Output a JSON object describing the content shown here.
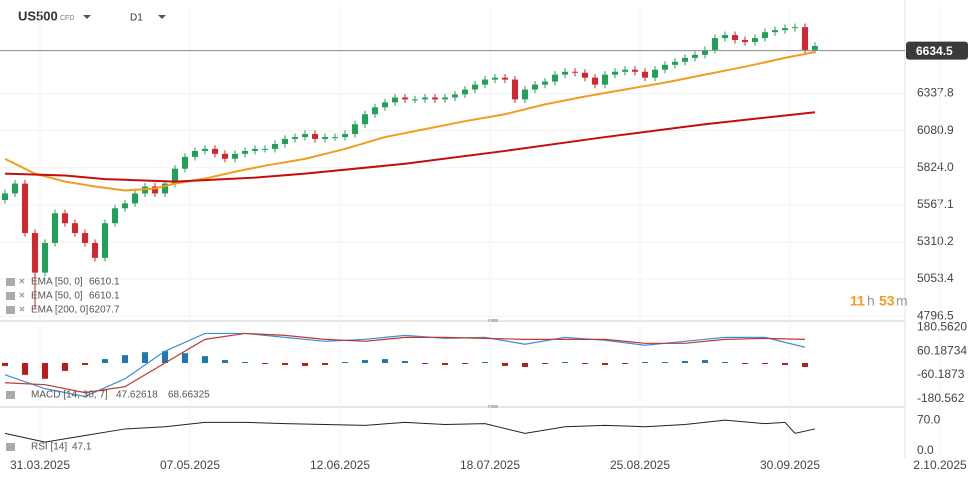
{
  "header": {
    "symbol": "US500",
    "market": "CFD",
    "timeframe": "D1"
  },
  "countdown": {
    "hours": 11,
    "hours_unit": "h",
    "minutes": 53,
    "minutes_unit": "m"
  },
  "chart_data": [
    {
      "type": "candlestick",
      "up_color": "#22a05a",
      "down_color": "#d0282e",
      "open": [
        5600,
        5646,
        5714,
        5372,
        5098,
        5303,
        5509,
        5440,
        5372,
        5303,
        5200,
        5440,
        5543,
        5577,
        5646,
        5694,
        5646,
        5714,
        5817,
        5899,
        5940,
        5954,
        5920,
        5886,
        5920,
        5940,
        5954,
        5954,
        5988,
        6023,
        6036,
        6057,
        6023,
        6036,
        6036,
        6057,
        6125,
        6194,
        6242,
        6276,
        6310,
        6297,
        6297,
        6310,
        6297,
        6310,
        6331,
        6365,
        6399,
        6434,
        6447,
        6434,
        6297,
        6365,
        6399,
        6420,
        6468,
        6488,
        6481,
        6447,
        6399,
        6468,
        6488,
        6502,
        6488,
        6447,
        6502,
        6536,
        6557,
        6584,
        6605,
        6639,
        6721,
        6742,
        6708,
        6694,
        6721,
        6762,
        6776,
        6790,
        6797,
        6639
      ],
      "high": [
        5671,
        5739,
        5739,
        5397,
        5328,
        5534,
        5534,
        5465,
        5397,
        5328,
        5465,
        5568,
        5602,
        5671,
        5719,
        5719,
        5739,
        5842,
        5924,
        5965,
        5979,
        5979,
        5945,
        5945,
        5965,
        5979,
        5979,
        6013,
        6048,
        6061,
        6082,
        6082,
        6061,
        6061,
        6082,
        6150,
        6219,
        6267,
        6301,
        6335,
        6335,
        6322,
        6335,
        6335,
        6335,
        6356,
        6390,
        6424,
        6459,
        6472,
        6472,
        6459,
        6390,
        6424,
        6445,
        6493,
        6513,
        6513,
        6506,
        6472,
        6493,
        6513,
        6527,
        6527,
        6513,
        6527,
        6561,
        6582,
        6609,
        6630,
        6664,
        6746,
        6767,
        6767,
        6733,
        6746,
        6787,
        6801,
        6815,
        6822,
        6822,
        6691
      ],
      "low": [
        5575,
        5621,
        5347,
        4850,
        5073,
        5278,
        5415,
        5347,
        5278,
        5175,
        5175,
        5415,
        5518,
        5552,
        5621,
        5621,
        5621,
        5689,
        5792,
        5874,
        5915,
        5895,
        5861,
        5861,
        5895,
        5915,
        5929,
        5929,
        5963,
        5998,
        6011,
        5998,
        5998,
        6011,
        6011,
        6032,
        6100,
        6169,
        6217,
        6251,
        6272,
        6272,
        6272,
        6272,
        6272,
        6285,
        6306,
        6340,
        6374,
        6409,
        6409,
        6272,
        6272,
        6340,
        6374,
        6395,
        6443,
        6456,
        6422,
        6374,
        6374,
        6443,
        6463,
        6463,
        6422,
        6422,
        6477,
        6511,
        6532,
        6559,
        6580,
        6614,
        6696,
        6683,
        6669,
        6669,
        6696,
        6737,
        6751,
        6765,
        6614,
        6614
      ],
      "close": [
        5646,
        5714,
        5372,
        5098,
        5303,
        5509,
        5440,
        5372,
        5303,
        5200,
        5440,
        5543,
        5577,
        5646,
        5694,
        5646,
        5714,
        5817,
        5899,
        5940,
        5954,
        5920,
        5886,
        5920,
        5940,
        5954,
        5954,
        5988,
        6023,
        6036,
        6057,
        6023,
        6036,
        6036,
        6057,
        6125,
        6194,
        6242,
        6276,
        6310,
        6297,
        6297,
        6310,
        6297,
        6310,
        6331,
        6365,
        6399,
        6434,
        6447,
        6434,
        6297,
        6365,
        6399,
        6420,
        6468,
        6488,
        6481,
        6447,
        6399,
        6468,
        6488,
        6502,
        6488,
        6447,
        6502,
        6536,
        6557,
        6584,
        6605,
        6639,
        6721,
        6742,
        6708,
        6694,
        6721,
        6762,
        6776,
        6790,
        6797,
        6639,
        6666
      ],
      "series": [
        {
          "name": "EMA [50, 0]",
          "last": 6610.1,
          "color": "#f39c1f",
          "x": [
            0,
            3,
            6,
            9,
            12,
            15,
            17,
            20,
            23,
            26,
            30,
            34,
            38,
            42,
            46,
            50,
            54,
            58,
            62,
            66,
            70,
            74,
            78,
            81
          ],
          "values": [
            5885,
            5783,
            5728,
            5694,
            5666,
            5680,
            5714,
            5749,
            5796,
            5838,
            5885,
            5954,
            6036,
            6091,
            6146,
            6194,
            6262,
            6317,
            6365,
            6413,
            6468,
            6523,
            6584,
            6625
          ]
        },
        {
          "name": "EMA [200, 0]",
          "last": 6207.7,
          "color": "#c40d0d",
          "x": [
            0,
            6,
            10,
            17,
            25,
            30,
            40,
            50,
            60,
            70,
            81
          ],
          "values": [
            5783,
            5770,
            5745,
            5728,
            5755,
            5783,
            5851,
            5940,
            6036,
            6125,
            6208
          ]
        }
      ],
      "last_price": 6634.5,
      "ylim": [
        4770,
        6950
      ],
      "yticks": [
        6337.8,
        6080.9,
        {
          "value": 5824,
          "label": "5824.0"
        },
        5567.1,
        5310.2,
        5053.4,
        4796.5
      ],
      "xticks": [
        {
          "value": 3,
          "label": "31.03.2025"
        },
        {
          "value": 18,
          "label": "07.05.2025"
        },
        {
          "value": 33,
          "label": "12.06.2025"
        },
        {
          "value": 48,
          "label": "18.07.2025"
        },
        {
          "value": 63,
          "label": "25.08.2025"
        },
        {
          "value": 78,
          "label": "30.09.2025"
        },
        {
          "value": 93,
          "label": "2.10.2025"
        }
      ]
    },
    {
      "type": "macd",
      "name": "MACD [14, 30, 7]",
      "last": [
        47.62618,
        68.66325
      ],
      "histogram": {
        "pos_color": "#1f78b4",
        "neg_color": "#b71c1c",
        "x": [
          0,
          2,
          4,
          6,
          8,
          10,
          12,
          14,
          16,
          18,
          20,
          22,
          24,
          26,
          28,
          30,
          32,
          34,
          36,
          38,
          40,
          42,
          44,
          46,
          48,
          50,
          52,
          54,
          56,
          58,
          60,
          62,
          64,
          66,
          68,
          70,
          72,
          74,
          76,
          78,
          80
        ],
        "values": [
          -15,
          -60,
          -80,
          -40,
          -10,
          20,
          40,
          55,
          60,
          50,
          35,
          15,
          5,
          -5,
          -10,
          -15,
          -10,
          5,
          15,
          20,
          10,
          -5,
          -10,
          -5,
          5,
          -15,
          -20,
          -5,
          5,
          -5,
          -10,
          -5,
          5,
          5,
          10,
          15,
          5,
          -5,
          -5,
          -10,
          -20
        ]
      },
      "series": [
        {
          "color": "#3b8fd9",
          "x": [
            0,
            4,
            8,
            12,
            16,
            20,
            24,
            28,
            32,
            36,
            40,
            44,
            48,
            52,
            56,
            60,
            64,
            68,
            72,
            76,
            80
          ],
          "values": [
            -60,
            -130,
            -170,
            -80,
            60,
            150,
            150,
            130,
            110,
            120,
            140,
            125,
            130,
            95,
            130,
            115,
            90,
            110,
            130,
            130,
            80
          ]
        },
        {
          "color": "#c0392b",
          "x": [
            0,
            4,
            8,
            12,
            16,
            20,
            24,
            28,
            32,
            36,
            40,
            44,
            48,
            52,
            56,
            60,
            64,
            68,
            72,
            76,
            80
          ],
          "values": [
            -100,
            -110,
            -150,
            -120,
            0,
            120,
            150,
            140,
            120,
            110,
            130,
            130,
            125,
            120,
            120,
            120,
            100,
            100,
            120,
            125,
            120
          ]
        }
      ],
      "ylim": [
        -213,
        208
      ],
      "yticks": [
        {
          "value": 180.562,
          "label": "180.5620"
        },
        60.18734,
        -60.1873,
        -180.562
      ]
    },
    {
      "type": "rsi",
      "name": "RSI [14]",
      "last": 47.1,
      "color": "#222222",
      "x": [
        0,
        4,
        8,
        12,
        16,
        20,
        24,
        28,
        32,
        36,
        40,
        44,
        48,
        52,
        56,
        60,
        64,
        68,
        72,
        76,
        78,
        79,
        81
      ],
      "values": [
        40,
        20,
        35,
        50,
        55,
        65,
        65,
        62,
        60,
        58,
        65,
        60,
        62,
        40,
        55,
        58,
        55,
        60,
        70,
        62,
        65,
        40,
        50
      ],
      "ylim": [
        -16,
        93
      ],
      "yticks": [
        {
          "value": 70,
          "label": "70.0"
        },
        {
          "value": 0,
          "label": "0.0"
        }
      ]
    }
  ]
}
